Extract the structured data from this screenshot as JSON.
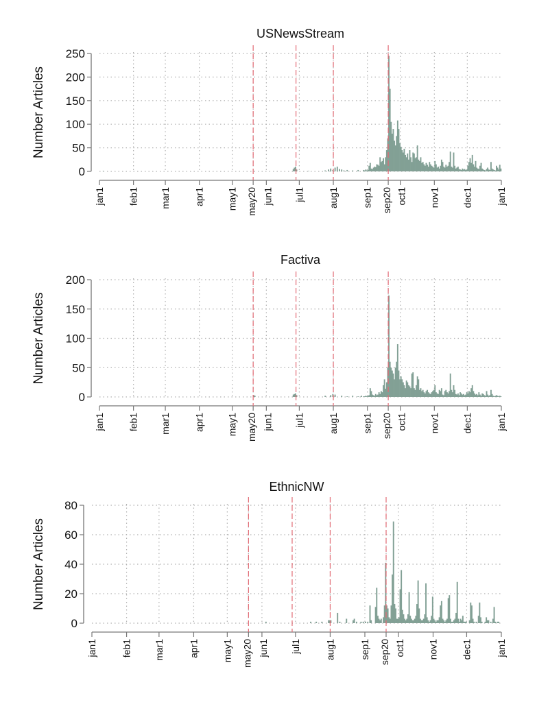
{
  "chart_data": {
    "type": "bar",
    "xlabel": "",
    "ylabel": "Number Articles",
    "x_tick_labels": [
      "jan1",
      "feb1",
      "mar1",
      "apr1",
      "may1",
      "may20",
      "jun1",
      "jul1",
      "aug1",
      "sep1",
      "sep20",
      "oct1",
      "nov1",
      "dec1",
      "jan1"
    ],
    "x_tick_days": [
      0,
      31,
      60,
      91,
      121,
      140,
      152,
      182,
      213,
      244,
      263,
      274,
      305,
      335,
      366
    ],
    "reference_lines_days": [
      140,
      179,
      213,
      263
    ],
    "grid": true,
    "colors": {
      "bar": "#82a095",
      "reference": "#e26a74",
      "grid": "#b0b0b0",
      "axis": "#777777"
    },
    "panels": [
      {
        "title": "USNewsStream",
        "ylim": [
          0,
          250
        ],
        "yticks": [
          0,
          50,
          100,
          150,
          200,
          250
        ],
        "sparse": [
          [
            3,
            1
          ],
          [
            140,
            1
          ],
          [
            176,
            5
          ],
          [
            177,
            8
          ],
          [
            178,
            10
          ],
          [
            179,
            4
          ],
          [
            190,
            1
          ],
          [
            205,
            2
          ],
          [
            208,
            4
          ],
          [
            210,
            6
          ],
          [
            212,
            3
          ],
          [
            214,
            8
          ],
          [
            216,
            10
          ],
          [
            218,
            5
          ],
          [
            220,
            4
          ],
          [
            222,
            2
          ],
          [
            225,
            3
          ],
          [
            230,
            2
          ],
          [
            235,
            3
          ]
        ],
        "start_day": 240,
        "values": [
          3,
          2,
          4,
          2,
          3,
          12,
          18,
          6,
          5,
          8,
          10,
          9,
          15,
          14,
          12,
          30,
          20,
          22,
          28,
          15,
          30,
          45,
          70,
          245,
          175,
          105,
          80,
          90,
          65,
          55,
          75,
          108,
          90,
          60,
          52,
          45,
          40,
          48,
          35,
          30,
          38,
          25,
          45,
          30,
          20,
          40,
          38,
          28,
          30,
          55,
          25,
          22,
          30,
          18,
          20,
          15,
          12,
          18,
          14,
          10,
          20,
          15,
          12,
          10,
          8,
          22,
          15,
          8,
          10,
          6,
          12,
          25,
          20,
          10,
          8,
          14,
          10,
          12,
          20,
          42,
          10,
          8,
          40,
          12,
          6,
          8,
          10,
          5,
          4,
          3,
          6,
          4,
          5,
          3,
          4,
          12,
          20,
          28,
          18,
          35,
          15,
          10,
          22,
          8,
          6,
          5,
          12,
          18,
          6,
          4,
          3,
          2,
          5,
          8,
          4,
          3,
          20,
          6,
          4,
          3,
          2,
          12,
          8,
          4,
          14,
          6
        ]
      },
      {
        "title": "Factiva",
        "ylim": [
          0,
          200
        ],
        "yticks": [
          0,
          50,
          100,
          150,
          200
        ],
        "sparse": [
          [
            140,
            3
          ],
          [
            141,
            2
          ],
          [
            176,
            4
          ],
          [
            177,
            5
          ],
          [
            178,
            6
          ],
          [
            179,
            3
          ],
          [
            205,
            2
          ],
          [
            210,
            3
          ],
          [
            212,
            5
          ],
          [
            214,
            4
          ],
          [
            220,
            2
          ],
          [
            225,
            1
          ],
          [
            230,
            2
          ],
          [
            235,
            1
          ],
          [
            238,
            2
          ]
        ],
        "start_day": 240,
        "values": [
          1,
          1,
          2,
          1,
          2,
          3,
          15,
          10,
          4,
          3,
          2,
          5,
          3,
          4,
          8,
          5,
          10,
          8,
          20,
          30,
          14,
          25,
          50,
          173,
          60,
          50,
          45,
          40,
          30,
          50,
          60,
          90,
          45,
          30,
          35,
          30,
          25,
          20,
          15,
          28,
          25,
          20,
          18,
          15,
          40,
          42,
          15,
          12,
          20,
          35,
          30,
          12,
          15,
          10,
          12,
          8,
          6,
          10,
          12,
          8,
          6,
          5,
          8,
          10,
          12,
          20,
          8,
          6,
          5,
          12,
          10,
          15,
          4,
          3,
          10,
          12,
          8,
          6,
          10,
          40,
          12,
          8,
          20,
          12,
          5,
          4,
          6,
          3,
          8,
          6,
          4,
          5,
          3,
          4,
          8,
          6,
          10,
          8,
          15,
          20,
          10,
          6,
          4,
          5,
          3,
          8,
          4,
          2,
          6,
          5,
          3,
          2,
          10,
          4,
          2,
          3,
          12,
          5,
          2,
          1,
          2,
          3,
          2,
          1,
          2,
          1
        ]
      },
      {
        "title": "EthnicNW",
        "ylim": [
          0,
          80
        ],
        "yticks": [
          0,
          20,
          40,
          60,
          80
        ],
        "sparse": [
          [
            155,
            1
          ],
          [
            195,
            1
          ],
          [
            200,
            1
          ],
          [
            205,
            1
          ],
          [
            211,
            2
          ],
          [
            212,
            2
          ],
          [
            213,
            2
          ],
          [
            219,
            7
          ],
          [
            221,
            1
          ],
          [
            227,
            3
          ],
          [
            233,
            2
          ],
          [
            234,
            3
          ],
          [
            236,
            1
          ],
          [
            240,
            1
          ],
          [
            242,
            1
          ],
          [
            244,
            1
          ],
          [
            246,
            1
          ],
          [
            248,
            12
          ],
          [
            249,
            2
          ],
          [
            253,
            11
          ],
          [
            254,
            24
          ],
          [
            255,
            5
          ],
          [
            256,
            3
          ],
          [
            257,
            2
          ],
          [
            258,
            3
          ],
          [
            260,
            4
          ],
          [
            261,
            12
          ],
          [
            262,
            41
          ],
          [
            263,
            12
          ],
          [
            264,
            10
          ],
          [
            265,
            4
          ],
          [
            266,
            3
          ],
          [
            267,
            12
          ],
          [
            268,
            33
          ],
          [
            269,
            69
          ],
          [
            270,
            13
          ],
          [
            271,
            10
          ],
          [
            272,
            3
          ],
          [
            273,
            3
          ],
          [
            274,
            4
          ],
          [
            275,
            23
          ],
          [
            276,
            36
          ],
          [
            277,
            9
          ],
          [
            278,
            6
          ],
          [
            279,
            3
          ],
          [
            280,
            2
          ],
          [
            281,
            3
          ],
          [
            282,
            6
          ],
          [
            283,
            21
          ],
          [
            284,
            5
          ],
          [
            285,
            3
          ],
          [
            286,
            2
          ],
          [
            287,
            2
          ],
          [
            288,
            3
          ],
          [
            289,
            5
          ],
          [
            290,
            13
          ],
          [
            291,
            29
          ],
          [
            292,
            10
          ],
          [
            293,
            3
          ],
          [
            294,
            2
          ],
          [
            295,
            2
          ],
          [
            296,
            3
          ],
          [
            297,
            6
          ],
          [
            298,
            27
          ],
          [
            299,
            4
          ],
          [
            300,
            2
          ],
          [
            301,
            1
          ],
          [
            302,
            2
          ],
          [
            303,
            5
          ],
          [
            304,
            18
          ],
          [
            305,
            3
          ],
          [
            306,
            2
          ],
          [
            307,
            1
          ],
          [
            308,
            2
          ],
          [
            309,
            2
          ],
          [
            310,
            4
          ],
          [
            311,
            12
          ],
          [
            312,
            15
          ],
          [
            313,
            3
          ],
          [
            314,
            2
          ],
          [
            315,
            1
          ],
          [
            316,
            2
          ],
          [
            317,
            3
          ],
          [
            318,
            17
          ],
          [
            319,
            19
          ],
          [
            320,
            3
          ],
          [
            321,
            1
          ],
          [
            322,
            1
          ],
          [
            323,
            2
          ],
          [
            324,
            3
          ],
          [
            325,
            7
          ],
          [
            326,
            28
          ],
          [
            327,
            3
          ],
          [
            328,
            1
          ],
          [
            329,
            3
          ],
          [
            330,
            2
          ],
          [
            331,
            5
          ],
          [
            332,
            1
          ],
          [
            333,
            1
          ],
          [
            334,
            1
          ],
          [
            337,
            2
          ],
          [
            338,
            14
          ],
          [
            339,
            12
          ],
          [
            340,
            3
          ],
          [
            341,
            1
          ],
          [
            343,
            1
          ],
          [
            345,
            5
          ],
          [
            346,
            14
          ],
          [
            347,
            4
          ],
          [
            348,
            1
          ],
          [
            351,
            1
          ],
          [
            352,
            4
          ],
          [
            353,
            2
          ],
          [
            354,
            2
          ],
          [
            356,
            1
          ],
          [
            358,
            3
          ],
          [
            359,
            11
          ],
          [
            360,
            1
          ],
          [
            362,
            1
          ],
          [
            363,
            1
          ]
        ],
        "start_day": null,
        "values": []
      }
    ]
  }
}
